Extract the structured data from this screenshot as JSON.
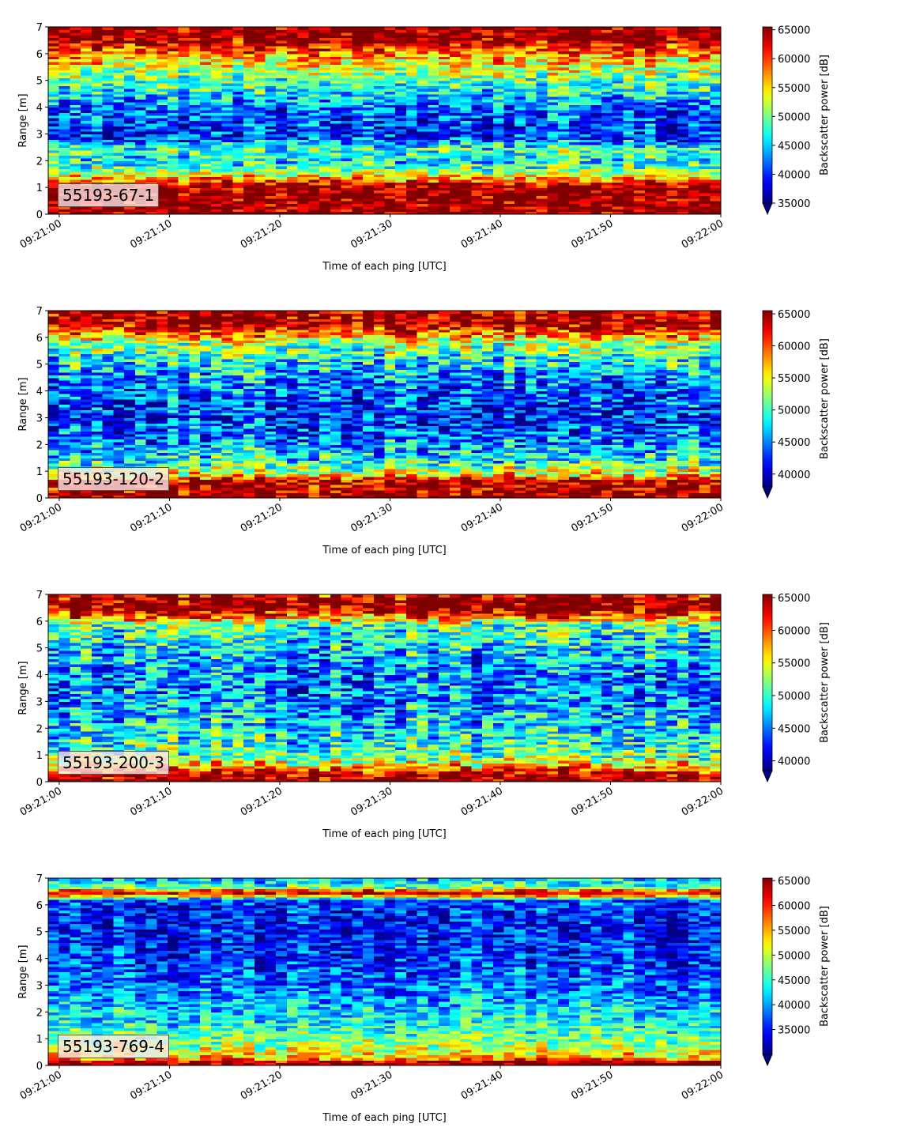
{
  "figure": {
    "colormap": "jet",
    "time_ticks": [
      "09:21:00",
      "09:21:10",
      "09:21:20",
      "09:21:30",
      "09:21:40",
      "09:21:50",
      "09:22:00"
    ],
    "range_ticks": [
      "0",
      "1",
      "2",
      "3",
      "4",
      "5",
      "6",
      "7"
    ],
    "xlabel": "Time of each ping [UTC]",
    "ylabel": "Range [m]",
    "colorbar_label": "Backscatter power [dB]"
  },
  "chart_data": [
    {
      "type": "heatmap",
      "label": "55193-67-1",
      "x_range": [
        "09:20:59",
        "09:22:00"
      ],
      "ylim": [
        0,
        7
      ],
      "ylabel": "Range [m]",
      "xlabel": "Time of each ping [UTC]",
      "colorbar": {
        "label": "Backscatter power [dB]",
        "ticks": [
          "35000",
          "40000",
          "45000",
          "50000",
          "55000",
          "60000",
          "65000"
        ],
        "min": 35000,
        "max": 65500,
        "extend": "min"
      },
      "profile": [
        {
          "range": 0.0,
          "value": 65500
        },
        {
          "range": 0.2,
          "value": 65500
        },
        {
          "range": 1.05,
          "value": 65000
        },
        {
          "range": 1.3,
          "value": 58000
        },
        {
          "range": 1.6,
          "value": 51000
        },
        {
          "range": 2.0,
          "value": 46000
        },
        {
          "range": 2.4,
          "value": 49000
        },
        {
          "range": 2.9,
          "value": 40000
        },
        {
          "range": 3.5,
          "value": 41000
        },
        {
          "range": 4.0,
          "value": 42000
        },
        {
          "range": 4.8,
          "value": 48000
        },
        {
          "range": 5.5,
          "value": 53000
        },
        {
          "range": 6.1,
          "value": 59000
        },
        {
          "range": 6.4,
          "value": 63000
        },
        {
          "range": 6.6,
          "value": 65500
        },
        {
          "range": 7.0,
          "value": 65500
        }
      ]
    },
    {
      "type": "heatmap",
      "label": "55193-120-2",
      "x_range": [
        "09:20:59",
        "09:22:00"
      ],
      "ylim": [
        0,
        7
      ],
      "ylabel": "Range [m]",
      "xlabel": "Time of each ping [UTC]",
      "colorbar": {
        "label": "Backscatter power [dB]",
        "ticks": [
          "40000",
          "45000",
          "50000",
          "55000",
          "60000",
          "65000"
        ],
        "min": 38000,
        "max": 65500,
        "extend": "min"
      },
      "profile": [
        {
          "range": 0.0,
          "value": 65500
        },
        {
          "range": 0.15,
          "value": 65500
        },
        {
          "range": 0.65,
          "value": 64000
        },
        {
          "range": 0.9,
          "value": 55000
        },
        {
          "range": 1.4,
          "value": 49000
        },
        {
          "range": 2.2,
          "value": 45000
        },
        {
          "range": 3.0,
          "value": 42500
        },
        {
          "range": 4.0,
          "value": 44000
        },
        {
          "range": 5.0,
          "value": 48000
        },
        {
          "range": 5.8,
          "value": 53000
        },
        {
          "range": 6.2,
          "value": 60000
        },
        {
          "range": 6.5,
          "value": 65500
        },
        {
          "range": 7.0,
          "value": 65000
        }
      ]
    },
    {
      "type": "heatmap",
      "label": "55193-200-3",
      "x_range": [
        "09:20:59",
        "09:22:00"
      ],
      "ylim": [
        0,
        7
      ],
      "ylabel": "Range [m]",
      "xlabel": "Time of each ping [UTC]",
      "colorbar": {
        "label": "Backscatter power [dB]",
        "ticks": [
          "40000",
          "45000",
          "50000",
          "55000",
          "60000",
          "65000"
        ],
        "min": 38500,
        "max": 65500,
        "extend": "min"
      },
      "profile": [
        {
          "range": 0.0,
          "value": 65500
        },
        {
          "range": 0.3,
          "value": 63000
        },
        {
          "range": 0.6,
          "value": 57000
        },
        {
          "range": 1.0,
          "value": 51000
        },
        {
          "range": 2.0,
          "value": 47500
        },
        {
          "range": 3.0,
          "value": 45500
        },
        {
          "range": 4.0,
          "value": 45500
        },
        {
          "range": 5.0,
          "value": 47500
        },
        {
          "range": 5.9,
          "value": 51000
        },
        {
          "range": 6.2,
          "value": 60000
        },
        {
          "range": 6.5,
          "value": 65500
        },
        {
          "range": 6.8,
          "value": 65000
        },
        {
          "range": 7.0,
          "value": 63000
        }
      ]
    },
    {
      "type": "heatmap",
      "label": "55193-769-4",
      "x_range": [
        "09:20:59",
        "09:22:00"
      ],
      "ylim": [
        0,
        7
      ],
      "ylabel": "Range [m]",
      "xlabel": "Time of each ping [UTC]",
      "colorbar": {
        "label": "Backscatter power [dB]",
        "ticks": [
          "35000",
          "40000",
          "45000",
          "50000",
          "55000",
          "60000",
          "65000"
        ],
        "min": 30000,
        "max": 65500,
        "extend": "min"
      },
      "profile": [
        {
          "range": 0.0,
          "value": 65500
        },
        {
          "range": 0.12,
          "value": 65500
        },
        {
          "range": 0.3,
          "value": 54000
        },
        {
          "range": 0.7,
          "value": 50000
        },
        {
          "range": 1.5,
          "value": 44000
        },
        {
          "range": 2.5,
          "value": 40000
        },
        {
          "range": 3.5,
          "value": 37000
        },
        {
          "range": 4.5,
          "value": 35500
        },
        {
          "range": 5.5,
          "value": 35000
        },
        {
          "range": 6.2,
          "value": 37000
        },
        {
          "range": 6.35,
          "value": 55000
        },
        {
          "range": 6.5,
          "value": 65500
        },
        {
          "range": 6.6,
          "value": 50000
        },
        {
          "range": 6.8,
          "value": 43000
        },
        {
          "range": 7.0,
          "value": 42000
        }
      ]
    }
  ]
}
